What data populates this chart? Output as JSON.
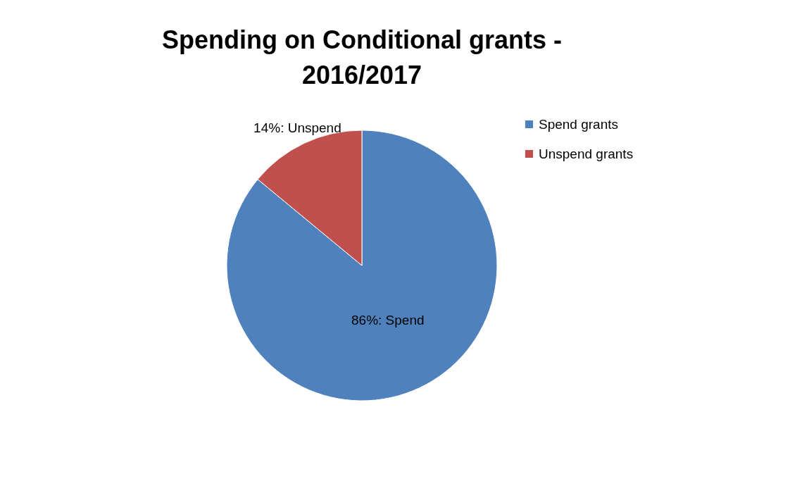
{
  "chart_data": {
    "type": "pie",
    "title": [
      "Spending on Conditional grants -",
      "2016/2017"
    ],
    "categories": [
      "Spend grants",
      "Unspend grants"
    ],
    "values": [
      86,
      14
    ],
    "colors": [
      "#4f81bd",
      "#c0504d"
    ],
    "value_labels": [
      "86%: Spend",
      "14%: Unspend"
    ],
    "legend": "right"
  }
}
